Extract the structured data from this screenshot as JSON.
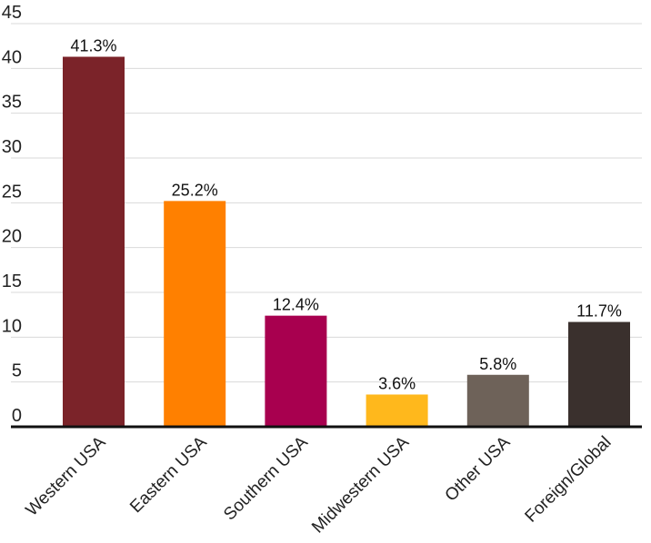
{
  "chart_data": {
    "type": "bar",
    "title": "",
    "xlabel": "",
    "ylabel": "",
    "categories": [
      "Western USA",
      "Eastern USA",
      "Southern USA",
      "Midwestern USA",
      "Other USA",
      "Foreign/Global"
    ],
    "values": [
      41.3,
      25.2,
      12.4,
      3.6,
      5.8,
      11.7
    ],
    "data_labels": [
      "41.3%",
      "25.2%",
      "12.4%",
      "3.6%",
      "5.8%",
      "11.7%"
    ],
    "colors": [
      "#7b2329",
      "#ff8000",
      "#a8004f",
      "#ffb81c",
      "#6e6259",
      "#3a302d"
    ],
    "ylim": [
      0,
      45
    ],
    "yticks": [
      0,
      5,
      10,
      15,
      20,
      25,
      30,
      35,
      40,
      45
    ],
    "grid": true,
    "legend": "none",
    "category_label_rotation": -45
  }
}
